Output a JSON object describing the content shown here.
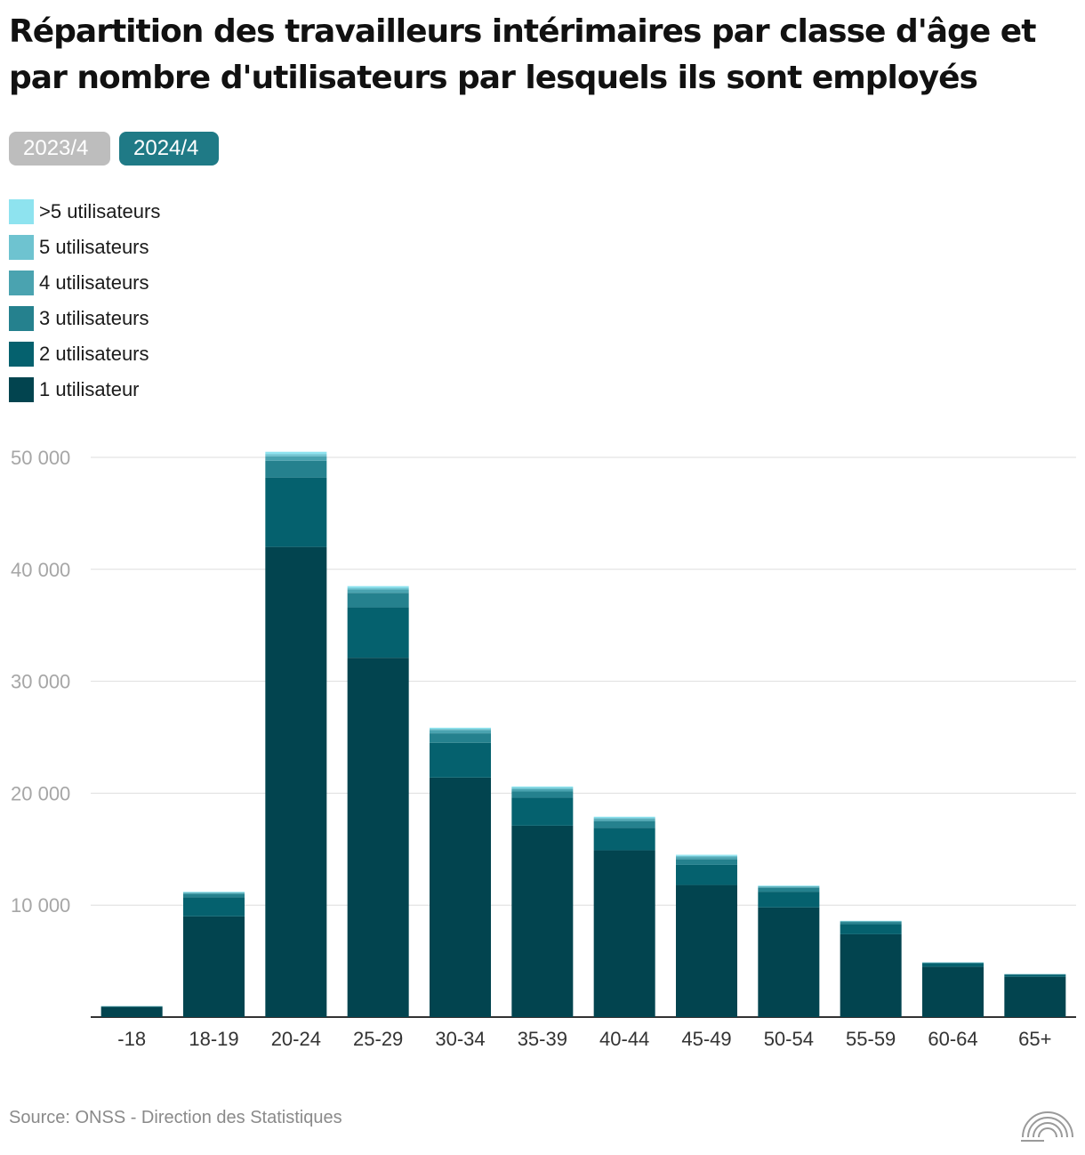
{
  "title": "Répartition des travailleurs intérimaires par classe d'âge et par nombre d'utilisateurs par lesquels ils sont employés",
  "tabs": [
    {
      "label": "2023/4",
      "active": false
    },
    {
      "label": "2024/4",
      "active": true
    }
  ],
  "legend": [
    {
      "label": ">5 utilisateurs",
      "color": "#8ee3ef"
    },
    {
      "label": "5 utilisateurs",
      "color": "#6ec3d0"
    },
    {
      "label": "4 utilisateurs",
      "color": "#4aa3b0"
    },
    {
      "label": "3 utilisateurs",
      "color": "#25818e"
    },
    {
      "label": "2 utilisateurs",
      "color": "#05616e"
    },
    {
      "label": "1 utilisateur",
      "color": "#02444f"
    }
  ],
  "chart_data": {
    "type": "bar",
    "stacked": true,
    "categories": [
      "-18",
      "18-19",
      "20-24",
      "25-29",
      "30-34",
      "35-39",
      "40-44",
      "45-49",
      "50-54",
      "55-59",
      "60-64",
      "65+"
    ],
    "series": [
      {
        "name": "1 utilisateur",
        "color": "#02444f",
        "values": [
          900,
          9000,
          42000,
          32100,
          21400,
          17100,
          14900,
          11800,
          9800,
          7400,
          4500,
          3600
        ]
      },
      {
        "name": "2 utilisateurs",
        "color": "#05616e",
        "values": [
          50,
          1700,
          6200,
          4500,
          3100,
          2500,
          2000,
          1800,
          1400,
          900,
          300,
          200
        ]
      },
      {
        "name": "3 utilisateurs",
        "color": "#25818e",
        "values": [
          20,
          300,
          1500,
          1300,
          850,
          550,
          600,
          500,
          350,
          200,
          60,
          30
        ]
      },
      {
        "name": "4 utilisateurs",
        "color": "#4aa3b0",
        "values": [
          5,
          100,
          400,
          300,
          300,
          200,
          200,
          200,
          100,
          50,
          20,
          10
        ]
      },
      {
        "name": "5 utilisateurs",
        "color": "#6ec3d0",
        "values": [
          3,
          50,
          200,
          150,
          100,
          150,
          100,
          100,
          50,
          30,
          10,
          5
        ]
      },
      {
        "name": ">5 utilisateurs",
        "color": "#8ee3ef",
        "values": [
          2,
          50,
          200,
          150,
          100,
          100,
          100,
          100,
          50,
          20,
          10,
          5
        ]
      }
    ],
    "yticks": [
      10000,
      20000,
      30000,
      40000,
      50000
    ],
    "ytick_labels": [
      "10 000",
      "20 000",
      "30 000",
      "40 000",
      "50 000"
    ],
    "ylim": [
      0,
      50000
    ],
    "xlabel": "",
    "ylabel": "",
    "grid": true
  },
  "source": "Source: ONSS - Direction des Statistiques",
  "icons": {
    "logo": "rainbow-arcs-logo-icon"
  }
}
